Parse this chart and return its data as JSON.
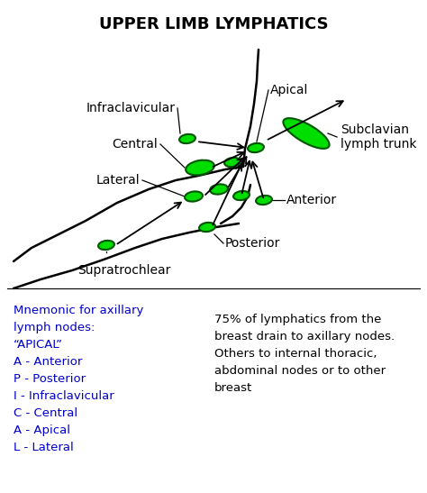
{
  "title": "UPPER LIMB LYMPHATICS",
  "title_fontsize": 13,
  "title_fontweight": "bold",
  "background_color": "#ffffff",
  "node_color": "#00dd00",
  "node_edge_color": "#005500",
  "line_color": "#000000",
  "label_color": "#000000",
  "mnemonic_color": "#0000cc",
  "text_color": "#000000",
  "mnemonic_lines": [
    "Mnemonic for axillary",
    "lymph nodes:",
    "“APICAL”",
    "A - Anterior",
    "P - Posterior",
    "I - Infraclavicular",
    "C - Central",
    "A - Apical",
    "L - Lateral"
  ],
  "info_text": "75% of lymphatics from the\nbreast drain to axillary nodes.\nOthers to internal thoracic,\nabdominal nodes or to other\nbreast"
}
